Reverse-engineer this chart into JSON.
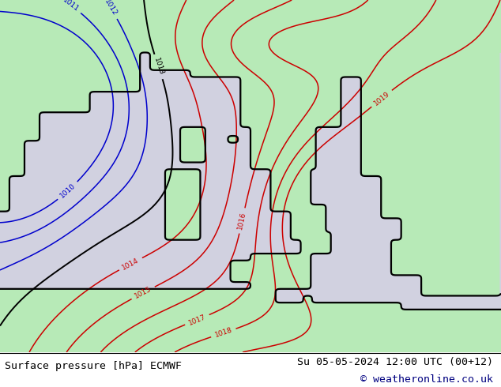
{
  "footer_left": "Surface pressure [hPa] ECMWF",
  "footer_right": "Su 05-05-2024 12:00 UTC (00+12)",
  "footer_copyright": "© weatheronline.co.uk",
  "sea_color": [
    0.82,
    0.82,
    0.88,
    1.0
  ],
  "land_color": [
    0.72,
    0.92,
    0.72,
    1.0
  ],
  "land_color_dark": [
    0.6,
    0.82,
    0.6,
    1.0
  ],
  "contour_color_red": "#cc0000",
  "contour_color_blue": "#0000cc",
  "contour_color_black": "#000000",
  "text_color_navy": "#000080",
  "text_color_black": "#000000",
  "fig_width": 6.34,
  "fig_height": 4.9,
  "dpi": 100
}
